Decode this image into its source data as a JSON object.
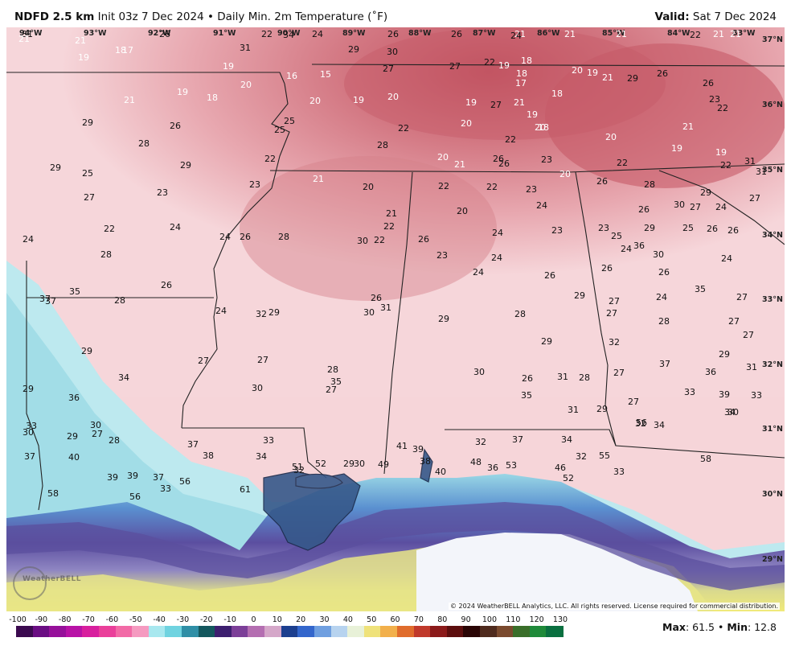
{
  "header": {
    "product": "NDFD 2.5 km",
    "init": "Init 03z 7 Dec 2024",
    "bullet": "•",
    "field": "Daily Min. 2m Temperature (˚F)",
    "valid_label": "Valid:",
    "valid_value": "Sat 7 Dec 2024"
  },
  "map": {
    "lon_labels": [
      "94°W",
      "93°W",
      "92°W",
      "91°W",
      "90°W",
      "89°W",
      "88°W",
      "87°W",
      "86°W",
      "85°W",
      "84°W",
      "83°W"
    ],
    "lat_labels": [
      "37°N",
      "36°N",
      "35°N",
      "34°N",
      "33°N",
      "32°N",
      "31°N",
      "30°N",
      "29°N"
    ],
    "temps": [
      "31",
      "26",
      "22",
      "24",
      "21",
      "21",
      "21",
      "18",
      "17",
      "31",
      "34",
      "29",
      "30",
      "26",
      "26",
      "24",
      "21",
      "21",
      "22",
      "21",
      "21",
      "19",
      "19",
      "20",
      "16",
      "15",
      "27",
      "27",
      "22",
      "19",
      "18",
      "18",
      "17",
      "20",
      "21",
      "29",
      "26",
      "26",
      "23",
      "22",
      "21",
      "19",
      "18",
      "20",
      "19",
      "20",
      "19",
      "27",
      "21",
      "19",
      "18",
      "18",
      "19",
      "21",
      "29",
      "26",
      "25",
      "25",
      "28",
      "22",
      "20",
      "22",
      "20",
      "20",
      "20",
      "22",
      "19",
      "19",
      "28",
      "29",
      "22",
      "21",
      "20",
      "21",
      "20",
      "21",
      "26",
      "26",
      "23",
      "22",
      "31",
      "31",
      "29",
      "25",
      "27",
      "23",
      "23",
      "22",
      "20",
      "22",
      "23",
      "24",
      "26",
      "28",
      "29",
      "27",
      "22",
      "24",
      "24",
      "26",
      "28",
      "30",
      "22",
      "22",
      "26",
      "24",
      "23",
      "23",
      "25",
      "26",
      "29",
      "30",
      "27",
      "26",
      "24",
      "24",
      "28",
      "23",
      "24",
      "26",
      "26",
      "24",
      "36",
      "30",
      "26",
      "25",
      "24",
      "26",
      "37",
      "37",
      "35",
      "28",
      "26",
      "26",
      "24",
      "32",
      "29",
      "24",
      "28",
      "29",
      "27",
      "24",
      "35",
      "27",
      "29",
      "27",
      "27",
      "28",
      "30",
      "31",
      "29",
      "29",
      "27",
      "32",
      "28",
      "27",
      "27",
      "29",
      "36",
      "34",
      "30",
      "27",
      "35",
      "30",
      "26",
      "31",
      "28",
      "27",
      "37",
      "36",
      "29",
      "31",
      "30",
      "29",
      "30",
      "28",
      "37",
      "33",
      "32",
      "35",
      "31",
      "29",
      "27",
      "32",
      "33",
      "34",
      "33",
      "33",
      "27",
      "39",
      "38",
      "34",
      "32",
      "29",
      "30",
      "41",
      "39",
      "37",
      "34",
      "32",
      "33",
      "34",
      "30",
      "39",
      "37",
      "40",
      "39",
      "37",
      "33",
      "51",
      "52",
      "49",
      "38",
      "40",
      "48",
      "36",
      "53",
      "46",
      "52",
      "55",
      "56",
      "58",
      "58",
      "56",
      "56",
      "61"
    ],
    "copyright": "© 2024 WeatherBELL Analytics, LLC. All rights reserved. License required for commercial distribution.",
    "logo_text": "WeatherBELL"
  },
  "colorbar": {
    "ticks": [
      "-100",
      "-90",
      "-80",
      "-70",
      "-60",
      "-50",
      "-40",
      "-30",
      "-20",
      "-10",
      "0",
      "10",
      "20",
      "30",
      "40",
      "50",
      "60",
      "70",
      "80",
      "90",
      "100",
      "110",
      "120",
      "130"
    ],
    "colors": [
      "#3b0a4f",
      "#6a0d83",
      "#96109a",
      "#b812a6",
      "#d81f9e",
      "#ea3f9a",
      "#f26aa6",
      "#f59ac0",
      "#a8e8ef",
      "#6fd3e0",
      "#2f8fa6",
      "#14585e",
      "#3d1f6f",
      "#7c3f98",
      "#b46eb1",
      "#d5a7c9",
      "#1c3f8f",
      "#3366cc",
      "#6f9fe0",
      "#b7d3ef",
      "#e8f1d8",
      "#efe27a",
      "#f2b04b",
      "#e06c2c",
      "#c0392b",
      "#8b1a1a",
      "#5c0e0e",
      "#2a0505",
      "#4f2b1e",
      "#7a4a2e",
      "#3a6e2a",
      "#1f8a3a",
      "#0a7040"
    ]
  },
  "stats": {
    "max_label": "Max",
    "max_value": "61.5",
    "sep": "•",
    "min_label": "Min",
    "min_value": "12.8"
  },
  "colors": {
    "warm_dark": "#c9646f",
    "warm_mid": "#e29aa2",
    "warm_light": "#f7d7da",
    "cyan": "#aee3ea",
    "purple": "#6a5aa8",
    "yellow": "#e6e68a",
    "ocean_white": "#f4f6fb"
  }
}
